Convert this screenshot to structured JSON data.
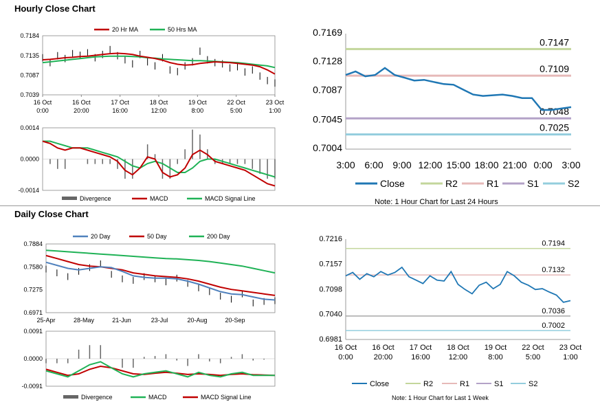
{
  "sections": {
    "hourly_title": "Hourly Close Chart",
    "daily_title": "Daily Close Chart"
  },
  "notes": {
    "hourly": "Note: 1 Hour Chart for Last 24 Hours",
    "daily": "Note: 1 Hour Chart for Last 1 Week"
  },
  "colors": {
    "red": "#c00000",
    "green": "#1fb256",
    "blue": "#4f81bd",
    "close_line": "#1f77b4",
    "r2": "#c3d69b",
    "r1": "#e6b9b8",
    "s1": "#b3a2c7",
    "s2": "#93cddd",
    "grey": "#666666"
  },
  "chart_data": [
    {
      "id": "hourly_price",
      "type": "line",
      "title": "",
      "y_ticks": [
        "0.7184",
        "0.7135",
        "0.7087",
        "0.7039"
      ],
      "ylim": [
        0.7039,
        0.7184
      ],
      "x_ticks": [
        [
          "16 Oct",
          "0:00"
        ],
        [
          "16 Oct",
          "20:00"
        ],
        [
          "17 Oct",
          "16:00"
        ],
        [
          "18 Oct",
          "12:00"
        ],
        [
          "19 Oct",
          "8:00"
        ],
        [
          "22 Oct",
          "5:00"
        ],
        [
          "23 Oct",
          "1:00"
        ]
      ],
      "legend": [
        "20 Hr MA",
        "50 Hrs MA"
      ],
      "series": [
        {
          "name": "20 Hr MA",
          "values": [
            0.7125,
            0.7126,
            0.7128,
            0.713,
            0.7131,
            0.7133,
            0.7134,
            0.7136,
            0.7138,
            0.714,
            0.7141,
            0.714,
            0.7138,
            0.7134,
            0.7131,
            0.7128,
            0.7124,
            0.7118,
            0.7114,
            0.7112,
            0.7113,
            0.7116,
            0.7118,
            0.712,
            0.7119,
            0.7118,
            0.7116,
            0.7114,
            0.7112,
            0.7108,
            0.71,
            0.709
          ]
        },
        {
          "name": "50 Hrs MA",
          "values": [
            0.7118,
            0.712,
            0.7122,
            0.7124,
            0.7126,
            0.7128,
            0.713,
            0.7132,
            0.7133,
            0.7134,
            0.7134,
            0.7134,
            0.7133,
            0.7132,
            0.713,
            0.7129,
            0.7127,
            0.7126,
            0.7125,
            0.7124,
            0.7123,
            0.7123,
            0.7122,
            0.7121,
            0.712,
            0.7119,
            0.7118,
            0.7116,
            0.7114,
            0.7112,
            0.711,
            0.7106
          ]
        },
        {
          "name": "Close",
          "values": [
            0.713,
            0.7118,
            0.7135,
            0.7128,
            0.714,
            0.7136,
            0.7142,
            0.713,
            0.7138,
            0.715,
            0.7135,
            0.7125,
            0.7115,
            0.7138,
            0.712,
            0.711,
            0.713,
            0.71,
            0.7096,
            0.711,
            0.712,
            0.7146,
            0.7125,
            0.7118,
            0.7115,
            0.7105,
            0.7108,
            0.7095,
            0.71,
            0.7085,
            0.7074,
            0.7068
          ]
        }
      ]
    },
    {
      "id": "hourly_macd",
      "type": "line",
      "title": "",
      "y_ticks": [
        "0.0014",
        "0.0000",
        "-0.0014"
      ],
      "ylim": [
        -0.0014,
        0.0014
      ],
      "legend": [
        "Divergence",
        "MACD",
        "MACD Signal Line"
      ],
      "series": [
        {
          "name": "MACD",
          "values": [
            0.0008,
            0.0007,
            0.0005,
            0.0004,
            0.0005,
            0.0005,
            0.0004,
            0.0003,
            0.0002,
            0.0001,
            -0.0001,
            -0.0005,
            -0.0007,
            -0.0004,
            0.0001,
            0.0,
            -0.0006,
            -0.0008,
            -0.0007,
            -0.0004,
            0.0002,
            0.0004,
            0.0002,
            -0.0001,
            -0.0002,
            -0.0003,
            -0.0004,
            -0.0005,
            -0.0007,
            -0.0009,
            -0.0011,
            -0.0012
          ]
        },
        {
          "name": "MACD Signal Line",
          "values": [
            0.0008,
            0.0008,
            0.0007,
            0.0006,
            0.0005,
            0.0005,
            0.0005,
            0.0004,
            0.0003,
            0.0002,
            0.0001,
            -0.0001,
            -0.0003,
            -0.0004,
            -0.0002,
            -0.0001,
            -0.0002,
            -0.0004,
            -0.0006,
            -0.0006,
            -0.0004,
            -0.0001,
            0.0,
            0.0,
            -0.0001,
            -0.0002,
            -0.0003,
            -0.0004,
            -0.0005,
            -0.0006,
            -0.0007,
            -0.0008
          ]
        }
      ]
    },
    {
      "id": "hourly_levels",
      "type": "line",
      "title": "",
      "y_ticks": [
        "0.7169",
        "0.7128",
        "0.7087",
        "0.7045",
        "0.7004"
      ],
      "ylim": [
        0.7004,
        0.7169
      ],
      "x_ticks": [
        "3:00",
        "6:00",
        "9:00",
        "12:00",
        "15:00",
        "18:00",
        "21:00",
        "0:00",
        "3:00"
      ],
      "legend": [
        "Close",
        "R2",
        "R1",
        "S1",
        "S2"
      ],
      "levels": {
        "R2": 0.7147,
        "R1": 0.7109,
        "S1": 0.7048,
        "S2": 0.7025
      },
      "level_labels": {
        "R2": "0.7147",
        "R1": "0.7109",
        "S1": "0.7048",
        "S2": "0.7025"
      },
      "series": [
        {
          "name": "Close",
          "values": [
            0.711,
            0.7115,
            0.7108,
            0.711,
            0.712,
            0.711,
            0.7106,
            0.7102,
            0.7103,
            0.71,
            0.7097,
            0.7096,
            0.7089,
            0.7082,
            0.708,
            0.7081,
            0.7082,
            0.708,
            0.7077,
            0.7077,
            0.706,
            0.706,
            0.7062,
            0.7064
          ]
        }
      ]
    },
    {
      "id": "daily_price",
      "type": "line",
      "title": "",
      "y_ticks": [
        "0.7884",
        "0.7580",
        "0.7275",
        "0.6971"
      ],
      "ylim": [
        0.6971,
        0.7884
      ],
      "x_ticks": [
        "25-Apr",
        "28-May",
        "21-Jun",
        "23-Jul",
        "20-Aug",
        "20-Sep"
      ],
      "legend": [
        "20 Day",
        "50 Day",
        "200 Day"
      ],
      "series": [
        {
          "name": "20 Day",
          "values": [
            0.764,
            0.76,
            0.756,
            0.754,
            0.756,
            0.758,
            0.757,
            0.752,
            0.746,
            0.744,
            0.743,
            0.743,
            0.742,
            0.739,
            0.735,
            0.73,
            0.725,
            0.722,
            0.721,
            0.718,
            0.715,
            0.714
          ]
        },
        {
          "name": "50 Day",
          "values": [
            0.773,
            0.769,
            0.765,
            0.761,
            0.759,
            0.758,
            0.756,
            0.754,
            0.75,
            0.748,
            0.746,
            0.745,
            0.744,
            0.742,
            0.739,
            0.735,
            0.731,
            0.728,
            0.726,
            0.724,
            0.722,
            0.72
          ]
        },
        {
          "name": "200 Day",
          "values": [
            0.78,
            0.779,
            0.778,
            0.777,
            0.776,
            0.775,
            0.774,
            0.773,
            0.772,
            0.771,
            0.77,
            0.769,
            0.7685,
            0.7675,
            0.7665,
            0.765,
            0.763,
            0.761,
            0.759,
            0.756,
            0.753,
            0.75
          ]
        },
        {
          "name": "Close",
          "values": [
            0.755,
            0.75,
            0.745,
            0.752,
            0.757,
            0.762,
            0.748,
            0.742,
            0.74,
            0.745,
            0.742,
            0.738,
            0.743,
            0.736,
            0.73,
            0.725,
            0.719,
            0.715,
            0.722,
            0.71,
            0.712,
            0.713
          ]
        }
      ]
    },
    {
      "id": "daily_macd",
      "type": "line",
      "title": "",
      "y_ticks": [
        "0.0091",
        "0.0000",
        "-0.0091"
      ],
      "ylim": [
        -0.0091,
        0.0091
      ],
      "legend": [
        "Divergence",
        "MACD",
        "MACD Signal Line"
      ],
      "series": [
        {
          "name": "MACD",
          "values": [
            -0.004,
            -0.005,
            -0.006,
            -0.004,
            -0.002,
            -0.001,
            -0.003,
            -0.005,
            -0.006,
            -0.005,
            -0.0045,
            -0.004,
            -0.005,
            -0.006,
            -0.0045,
            -0.0055,
            -0.006,
            -0.005,
            -0.0045,
            -0.0055,
            -0.0055,
            -0.0055
          ]
        },
        {
          "name": "MACD Signal Line",
          "values": [
            -0.0035,
            -0.0045,
            -0.0055,
            -0.005,
            -0.0035,
            -0.0025,
            -0.003,
            -0.004,
            -0.005,
            -0.0052,
            -0.0048,
            -0.0045,
            -0.0048,
            -0.0052,
            -0.005,
            -0.0052,
            -0.0055,
            -0.0052,
            -0.005,
            -0.0053,
            -0.0054,
            -0.0055
          ]
        }
      ]
    },
    {
      "id": "daily_levels",
      "type": "line",
      "title": "",
      "y_ticks": [
        "0.7216",
        "0.7157",
        "0.7098",
        "0.7040",
        "0.6981"
      ],
      "ylim": [
        0.6981,
        0.7216
      ],
      "x_ticks": [
        [
          "16 Oct",
          "0:00"
        ],
        [
          "16 Oct",
          "20:00"
        ],
        [
          "17 Oct",
          "16:00"
        ],
        [
          "18 Oct",
          "12:00"
        ],
        [
          "19 Oct",
          "8:00"
        ],
        [
          "22 Oct",
          "5:00"
        ],
        [
          "23 Oct",
          "1:00"
        ]
      ],
      "legend": [
        "Close",
        "R2",
        "R1",
        "S1",
        "S2"
      ],
      "levels": {
        "R2": 0.7194,
        "R1": 0.7132,
        "S1": 0.7036,
        "S2": 0.7002
      },
      "level_labels": {
        "R2": "0.7194",
        "R1": "0.7132",
        "S1": "0.7036",
        "S2": "0.7002"
      },
      "series": [
        {
          "name": "Close",
          "values": [
            0.713,
            0.7138,
            0.7122,
            0.7135,
            0.7128,
            0.714,
            0.7132,
            0.7138,
            0.715,
            0.7128,
            0.712,
            0.7112,
            0.713,
            0.712,
            0.7118,
            0.714,
            0.711,
            0.7098,
            0.7088,
            0.7108,
            0.7115,
            0.71,
            0.711,
            0.714,
            0.713,
            0.7115,
            0.7108,
            0.7098,
            0.71,
            0.7092,
            0.7085,
            0.7068,
            0.7072
          ]
        }
      ]
    }
  ]
}
